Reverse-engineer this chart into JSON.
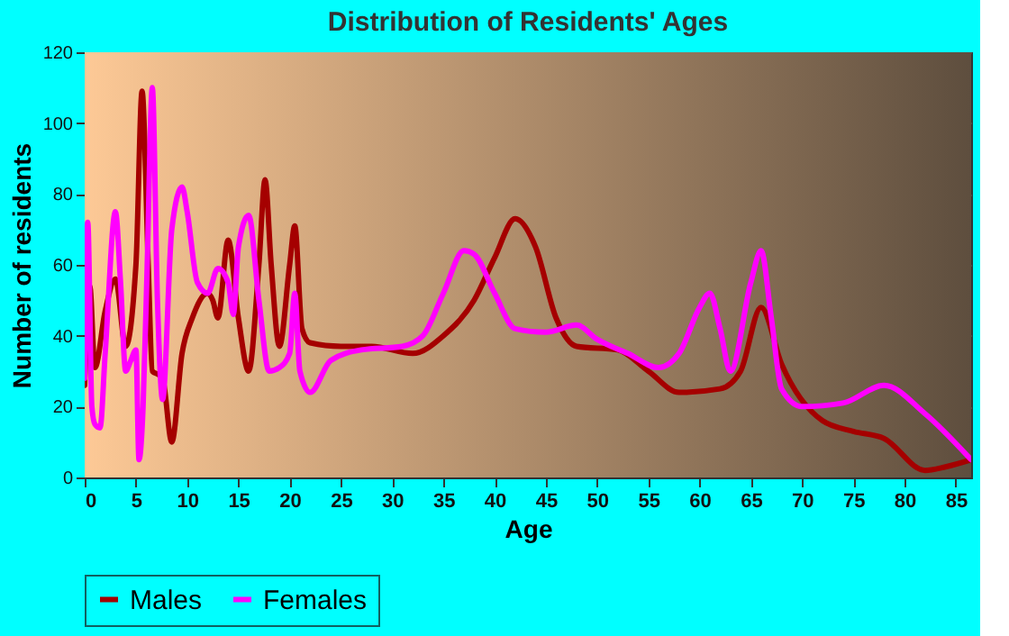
{
  "chart_data": {
    "type": "line",
    "title": "Distribution of Residents' Ages",
    "xlabel": "Age",
    "ylabel": "Number of residents",
    "xlim": [
      0,
      86.5
    ],
    "xticks": [
      0,
      5,
      10,
      15,
      20,
      25,
      30,
      35,
      40,
      45,
      50,
      55,
      60,
      65,
      70,
      75,
      80,
      85
    ],
    "ylim": [
      0,
      120
    ],
    "yticks": [
      0,
      20,
      40,
      60,
      80,
      100,
      120
    ],
    "grid": true,
    "legend": "bottom",
    "series": [
      {
        "name": "Males",
        "color": "#a50000",
        "x": [
          0,
          0.5,
          1,
          2,
          3,
          4,
          5,
          5.6,
          6.2,
          6.6,
          7.2,
          7.6,
          8.5,
          9.5,
          10.5,
          12,
          12.5,
          13,
          14,
          15,
          16,
          17,
          17.6,
          18.2,
          19,
          20,
          20.5,
          21.2,
          22,
          25,
          28,
          32,
          35,
          38,
          40,
          42,
          44,
          46,
          48,
          52,
          55,
          58,
          62,
          64,
          66,
          68,
          72,
          75,
          78,
          82,
          84,
          86.5
        ],
        "values": [
          26,
          54,
          31,
          47,
          56,
          37,
          60,
          109,
          60,
          30,
          29,
          28,
          10,
          35,
          45,
          52,
          50,
          45,
          67,
          45,
          30,
          60,
          84,
          60,
          37,
          60,
          71,
          42,
          38,
          37,
          37,
          35,
          40,
          50,
          62,
          73,
          65,
          45,
          37,
          36,
          30,
          24,
          25,
          30,
          48,
          32,
          16,
          13,
          11,
          2,
          3,
          5
        ]
      },
      {
        "name": "Females",
        "color": "#ff00ff",
        "x": [
          0,
          0.3,
          0.7,
          1,
          1.5,
          2,
          3,
          3.5,
          4,
          4.5,
          5,
          5.3,
          5.7,
          6.1,
          6.6,
          7.1,
          7.6,
          8.5,
          9.5,
          10,
          11,
          12,
          13,
          14,
          14.5,
          15,
          16,
          17,
          18,
          19,
          20,
          20.5,
          21,
          22,
          24,
          27,
          31,
          33,
          35,
          37,
          38,
          40,
          42,
          45,
          48,
          50,
          53,
          56,
          58,
          60,
          61,
          62,
          63,
          65,
          66,
          67,
          68,
          70,
          74,
          78,
          82,
          86.5
        ],
        "values": [
          28,
          72,
          20,
          15,
          14,
          35,
          75,
          55,
          30,
          33,
          36,
          5,
          20,
          60,
          110,
          50,
          22,
          70,
          82,
          75,
          55,
          52,
          59,
          55,
          46,
          65,
          74,
          50,
          30,
          31,
          35,
          52,
          30,
          24,
          33,
          36,
          37,
          40,
          52,
          64,
          63,
          52,
          42,
          41,
          43,
          39,
          35,
          31,
          35,
          48,
          52,
          42,
          30,
          55,
          64,
          45,
          25,
          20,
          21,
          26,
          18,
          5
        ]
      }
    ]
  }
}
